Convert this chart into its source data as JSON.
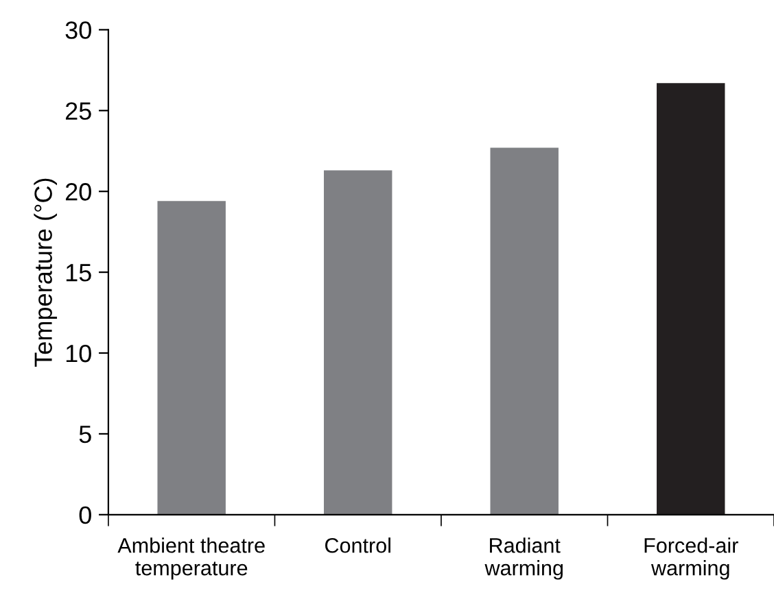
{
  "chart_data": {
    "type": "bar",
    "ylabel": "Temperature (°C)",
    "categories": [
      "Ambient theatre\ntemperature",
      "Control",
      "Radiant\nwarming",
      "Forced-air\nwarming"
    ],
    "values": [
      19.4,
      21.3,
      22.7,
      26.7
    ],
    "colors": [
      "#7f8084",
      "#7f8084",
      "#7f8084",
      "#231f20"
    ],
    "ylim": [
      0,
      30
    ],
    "yticks": [
      0,
      5,
      10,
      15,
      20,
      25,
      30
    ],
    "grid": false,
    "legend": false
  }
}
